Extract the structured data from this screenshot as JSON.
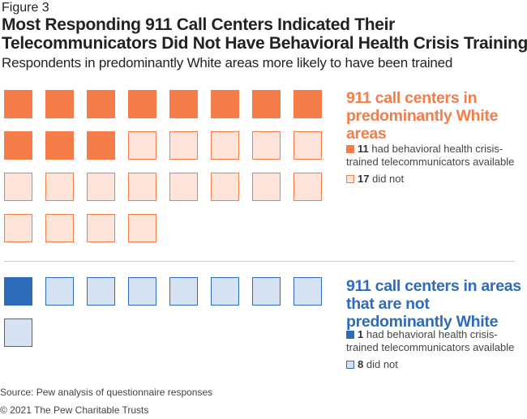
{
  "figure_label": "Figure 3",
  "title": "Most Responding 911 Call Centers Indicated Their Telecommunicators Did Not Have Behavioral Health Crisis Training",
  "subtitle": "Respondents in predominantly White areas more likely to have been trained",
  "chart_data": {
    "type": "waffle",
    "columns": 8,
    "groups": [
      {
        "name": "911 call centers in predominantly White areas",
        "trained": 11,
        "not_trained": 17,
        "trained_label": "had behavioral health crisis-trained telecommunicators available",
        "not_trained_label": "did not",
        "color_filled": "#F47D4A",
        "color_empty": "#FCE4DA"
      },
      {
        "name": "911 call centers in areas that are not predominantly White",
        "trained": 1,
        "not_trained": 8,
        "trained_label": "had behavioral health crisis-trained telecommunicators available",
        "not_trained_label": "did not",
        "color_filled": "#2E6BB8",
        "color_empty": "#D6E2F1"
      }
    ]
  },
  "source": "Source: Pew analysis of questionnaire responses",
  "copyright": "© 2021 The Pew Charitable Trusts"
}
